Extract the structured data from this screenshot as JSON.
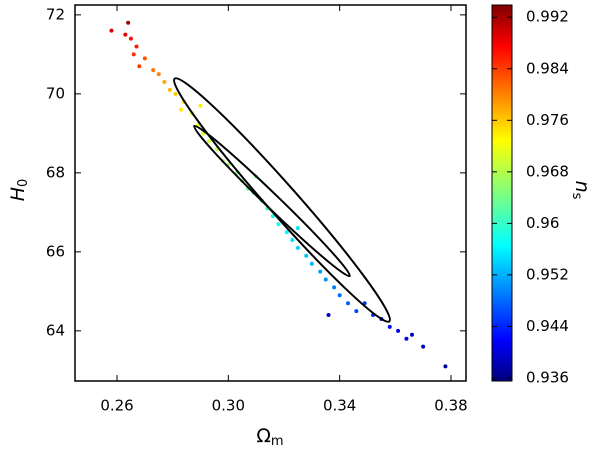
{
  "chart_data": {
    "type": "scatter",
    "xlabel": {
      "main": "Ω",
      "sub": "m"
    },
    "ylabel": {
      "main": "H",
      "sub": "0"
    },
    "x": [
      0.264,
      0.258,
      0.263,
      0.265,
      0.267,
      0.266,
      0.27,
      0.268,
      0.273,
      0.275,
      0.277,
      0.279,
      0.281,
      0.284,
      0.283,
      0.287,
      0.289,
      0.291,
      0.293,
      0.296,
      0.298,
      0.3,
      0.303,
      0.305,
      0.307,
      0.309,
      0.312,
      0.314,
      0.316,
      0.318,
      0.321,
      0.323,
      0.325,
      0.328,
      0.33,
      0.333,
      0.335,
      0.338,
      0.34,
      0.343,
      0.346,
      0.349,
      0.352,
      0.355,
      0.358,
      0.361,
      0.364,
      0.366,
      0.37,
      0.378,
      0.336,
      0.29,
      0.31,
      0.325
    ],
    "values": [
      71.8,
      71.6,
      71.5,
      71.4,
      71.2,
      71.0,
      70.9,
      70.7,
      70.6,
      70.5,
      70.3,
      70.1,
      70.0,
      69.8,
      69.6,
      69.5,
      69.2,
      69.0,
      68.8,
      68.6,
      68.3,
      68.2,
      68.0,
      67.8,
      67.6,
      67.5,
      67.3,
      67.1,
      66.9,
      66.7,
      66.5,
      66.3,
      66.1,
      65.9,
      65.7,
      65.5,
      65.3,
      65.1,
      64.9,
      64.7,
      64.5,
      64.7,
      64.4,
      64.3,
      64.1,
      64.0,
      63.8,
      63.9,
      63.6,
      63.1,
      64.4,
      69.7,
      67.9,
      66.6
    ],
    "color_values": [
      0.992,
      0.989,
      0.988,
      0.986,
      0.985,
      0.984,
      0.982,
      0.983,
      0.98,
      0.979,
      0.977,
      0.976,
      0.975,
      0.974,
      0.973,
      0.972,
      0.971,
      0.97,
      0.969,
      0.968,
      0.967,
      0.966,
      0.965,
      0.964,
      0.963,
      0.962,
      0.961,
      0.96,
      0.959,
      0.958,
      0.957,
      0.956,
      0.955,
      0.954,
      0.953,
      0.952,
      0.951,
      0.95,
      0.949,
      0.948,
      0.947,
      0.946,
      0.945,
      0.944,
      0.943,
      0.942,
      0.941,
      0.94,
      0.939,
      0.938,
      0.94,
      0.973,
      0.963,
      0.956
    ],
    "colormap": "jet",
    "xlim": [
      0.2449,
      0.3854
    ],
    "xticks": [
      {
        "value": 0.26,
        "label": "0.26"
      },
      {
        "value": 0.3,
        "label": "0.30"
      },
      {
        "value": 0.34,
        "label": "0.34"
      },
      {
        "value": 0.38,
        "label": "0.38"
      }
    ],
    "ylim": [
      62.73,
      72.25
    ],
    "yticks": [
      64,
      66,
      68,
      70,
      72
    ],
    "colorbar": {
      "label": {
        "main": "n",
        "sub": "s"
      },
      "lim": [
        0.93553,
        0.9939
      ],
      "ticks": [
        0.936,
        0.944,
        0.952,
        0.96,
        0.968,
        0.976,
        0.984,
        0.992
      ]
    }
  }
}
